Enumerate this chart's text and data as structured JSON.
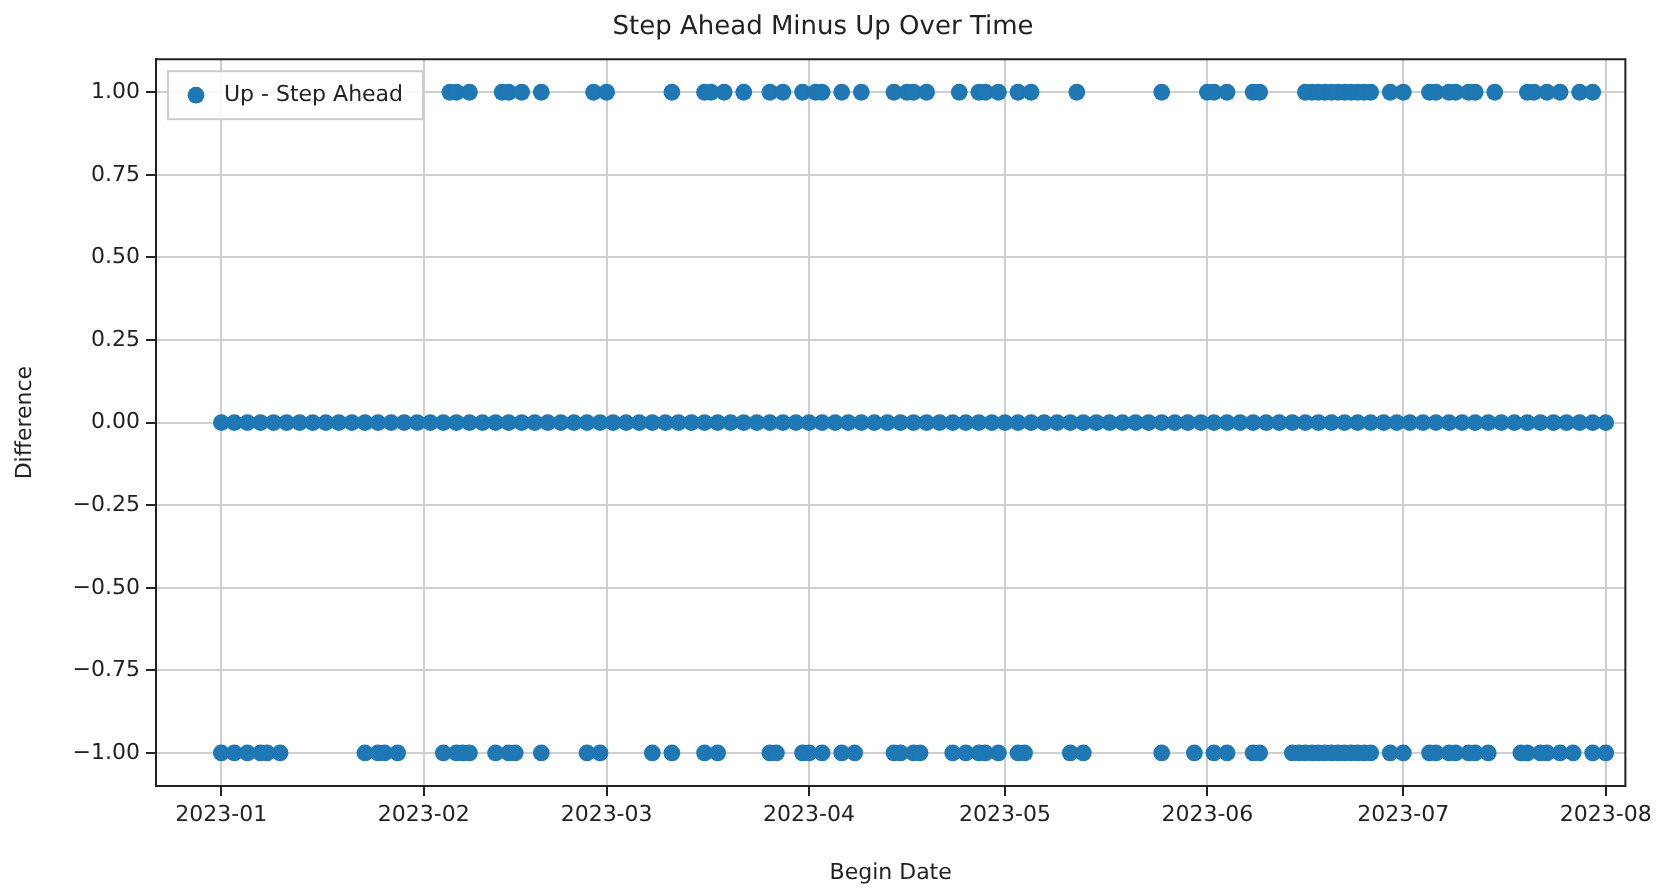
{
  "chart_data": {
    "type": "scatter",
    "title": "Step Ahead Minus Up Over Time",
    "xlabel": "Begin Date",
    "ylabel": "Difference",
    "xlim": [
      "2022-12-22",
      "2023-08-04"
    ],
    "xticks": [
      "2023-01",
      "2023-02",
      "2023-03",
      "2023-04",
      "2023-05",
      "2023-06",
      "2023-07",
      "2023-08"
    ],
    "ylim": [
      -1.1,
      1.1
    ],
    "yticks": [
      {
        "value": -1,
        "label": "−1.00"
      },
      {
        "value": -0.75,
        "label": "−0.75"
      },
      {
        "value": -0.5,
        "label": "−0.50"
      },
      {
        "value": -0.25,
        "label": "−0.25"
      },
      {
        "value": 0,
        "label": "0.00"
      },
      {
        "value": 0.25,
        "label": "0.25"
      },
      {
        "value": 0.5,
        "label": "0.50"
      },
      {
        "value": 0.75,
        "label": "0.75"
      },
      {
        "value": 1,
        "label": "1.00"
      }
    ],
    "grid": true,
    "legend": "top left",
    "marker": "circle",
    "series": [
      {
        "name": "Up - Step Ahead",
        "color": "#1f77b4",
        "x": [
          "2023-01-01",
          "2023-01-03",
          "2023-01-05",
          "2023-01-07",
          "2023-01-09",
          "2023-01-11",
          "2023-01-13",
          "2023-01-15",
          "2023-01-17",
          "2023-01-19",
          "2023-01-21",
          "2023-01-23",
          "2023-01-25",
          "2023-01-27",
          "2023-01-29",
          "2023-01-31",
          "2023-02-02",
          "2023-02-04",
          "2023-02-06",
          "2023-02-08",
          "2023-02-10",
          "2023-02-12",
          "2023-02-14",
          "2023-02-16",
          "2023-02-18",
          "2023-02-20",
          "2023-02-22",
          "2023-02-24",
          "2023-02-26",
          "2023-02-28",
          "2023-03-02",
          "2023-03-04",
          "2023-03-06",
          "2023-03-08",
          "2023-03-10",
          "2023-03-12",
          "2023-03-14",
          "2023-03-16",
          "2023-03-18",
          "2023-03-20",
          "2023-03-22",
          "2023-03-24",
          "2023-03-26",
          "2023-03-28",
          "2023-03-30",
          "2023-04-01",
          "2023-04-03",
          "2023-04-05",
          "2023-04-07",
          "2023-04-09",
          "2023-04-11",
          "2023-04-13",
          "2023-04-15",
          "2023-04-17",
          "2023-04-19",
          "2023-04-21",
          "2023-04-23",
          "2023-04-25",
          "2023-04-27",
          "2023-04-29",
          "2023-05-01",
          "2023-05-03",
          "2023-05-05",
          "2023-05-07",
          "2023-05-09",
          "2023-05-11",
          "2023-05-13",
          "2023-05-15",
          "2023-05-17",
          "2023-05-19",
          "2023-05-21",
          "2023-05-23",
          "2023-05-25",
          "2023-05-27",
          "2023-05-29",
          "2023-05-31",
          "2023-06-02",
          "2023-06-04",
          "2023-06-06",
          "2023-06-08",
          "2023-06-10",
          "2023-06-12",
          "2023-06-14",
          "2023-06-16",
          "2023-06-18",
          "2023-06-20",
          "2023-06-22",
          "2023-06-24",
          "2023-06-26",
          "2023-06-28",
          "2023-06-30",
          "2023-07-02",
          "2023-07-04",
          "2023-07-06",
          "2023-07-08",
          "2023-07-10",
          "2023-07-12",
          "2023-07-14",
          "2023-07-16",
          "2023-07-18",
          "2023-07-20",
          "2023-07-22",
          "2023-07-24",
          "2023-07-26",
          "2023-07-28",
          "2023-07-30",
          "2023-08-01",
          "2023-02-05",
          "2023-02-06",
          "2023-02-08",
          "2023-02-13",
          "2023-02-14",
          "2023-02-16",
          "2023-02-19",
          "2023-02-27",
          "2023-03-01",
          "2023-03-11",
          "2023-03-16",
          "2023-03-17",
          "2023-03-19",
          "2023-03-22",
          "2023-03-26",
          "2023-03-28",
          "2023-03-31",
          "2023-04-02",
          "2023-04-03",
          "2023-04-06",
          "2023-04-09",
          "2023-04-14",
          "2023-04-16",
          "2023-04-17",
          "2023-04-19",
          "2023-04-24",
          "2023-04-27",
          "2023-04-28",
          "2023-04-30",
          "2023-05-03",
          "2023-05-05",
          "2023-05-12",
          "2023-05-25",
          "2023-06-01",
          "2023-06-02",
          "2023-06-04",
          "2023-06-08",
          "2023-06-09",
          "2023-06-16",
          "2023-06-17",
          "2023-06-18",
          "2023-06-19",
          "2023-06-20",
          "2023-06-21",
          "2023-06-22",
          "2023-06-23",
          "2023-06-24",
          "2023-06-25",
          "2023-06-26",
          "2023-06-29",
          "2023-07-01",
          "2023-07-05",
          "2023-07-06",
          "2023-07-08",
          "2023-07-09",
          "2023-07-11",
          "2023-07-12",
          "2023-07-15",
          "2023-07-20",
          "2023-07-21",
          "2023-07-23",
          "2023-07-25",
          "2023-07-28",
          "2023-07-30",
          "2023-01-01",
          "2023-01-03",
          "2023-01-05",
          "2023-01-07",
          "2023-01-08",
          "2023-01-10",
          "2023-01-23",
          "2023-01-25",
          "2023-01-26",
          "2023-01-28",
          "2023-02-04",
          "2023-02-06",
          "2023-02-07",
          "2023-02-08",
          "2023-02-12",
          "2023-02-14",
          "2023-02-15",
          "2023-02-19",
          "2023-02-26",
          "2023-02-28",
          "2023-03-08",
          "2023-03-11",
          "2023-03-16",
          "2023-03-18",
          "2023-03-26",
          "2023-03-27",
          "2023-03-31",
          "2023-04-01",
          "2023-04-03",
          "2023-04-06",
          "2023-04-08",
          "2023-04-14",
          "2023-04-15",
          "2023-04-17",
          "2023-04-18",
          "2023-04-23",
          "2023-04-25",
          "2023-04-27",
          "2023-04-28",
          "2023-04-30",
          "2023-05-03",
          "2023-05-04",
          "2023-05-11",
          "2023-05-13",
          "2023-05-25",
          "2023-05-30",
          "2023-06-02",
          "2023-06-04",
          "2023-06-08",
          "2023-06-09",
          "2023-06-14",
          "2023-06-15",
          "2023-06-16",
          "2023-06-17",
          "2023-06-18",
          "2023-06-19",
          "2023-06-20",
          "2023-06-21",
          "2023-06-22",
          "2023-06-23",
          "2023-06-24",
          "2023-06-25",
          "2023-06-26",
          "2023-06-29",
          "2023-07-01",
          "2023-07-05",
          "2023-07-06",
          "2023-07-08",
          "2023-07-09",
          "2023-07-11",
          "2023-07-12",
          "2023-07-14",
          "2023-07-19",
          "2023-07-20",
          "2023-07-22",
          "2023-07-23",
          "2023-07-25",
          "2023-07-27",
          "2023-07-30",
          "2023-08-01"
        ],
        "values": [
          0,
          0,
          0,
          0,
          0,
          0,
          0,
          0,
          0,
          0,
          0,
          0,
          0,
          0,
          0,
          0,
          0,
          0,
          0,
          0,
          0,
          0,
          0,
          0,
          0,
          0,
          0,
          0,
          0,
          0,
          0,
          0,
          0,
          0,
          0,
          0,
          0,
          0,
          0,
          0,
          0,
          0,
          0,
          0,
          0,
          0,
          0,
          0,
          0,
          0,
          0,
          0,
          0,
          0,
          0,
          0,
          0,
          0,
          0,
          0,
          0,
          0,
          0,
          0,
          0,
          0,
          0,
          0,
          0,
          0,
          0,
          0,
          0,
          0,
          0,
          0,
          0,
          0,
          0,
          0,
          0,
          0,
          0,
          0,
          0,
          0,
          0,
          0,
          0,
          0,
          0,
          0,
          0,
          0,
          0,
          0,
          0,
          0,
          0,
          0,
          0,
          0,
          0,
          0,
          0,
          0,
          0,
          1,
          1,
          1,
          1,
          1,
          1,
          1,
          1,
          1,
          1,
          1,
          1,
          1,
          1,
          1,
          1,
          1,
          1,
          1,
          1,
          1,
          1,
          1,
          1,
          1,
          1,
          1,
          1,
          1,
          1,
          1,
          1,
          1,
          1,
          1,
          1,
          1,
          1,
          1,
          1,
          1,
          1,
          1,
          1,
          1,
          1,
          1,
          1,
          1,
          1,
          1,
          1,
          1,
          1,
          1,
          1,
          1,
          1,
          1,
          1,
          1,
          1,
          1,
          1,
          -1,
          -1,
          -1,
          -1,
          -1,
          -1,
          -1,
          -1,
          -1,
          -1,
          -1,
          -1,
          -1,
          -1,
          -1,
          -1,
          -1,
          -1,
          -1,
          -1,
          -1,
          -1,
          -1,
          -1,
          -1,
          -1,
          -1,
          -1,
          -1,
          -1,
          -1,
          -1,
          -1,
          -1,
          -1,
          -1,
          -1,
          -1,
          -1,
          -1,
          -1,
          -1,
          -1,
          -1,
          -1,
          -1,
          -1,
          -1,
          -1,
          -1,
          -1,
          -1,
          -1,
          -1,
          -1,
          -1,
          -1,
          -1,
          -1,
          -1,
          -1,
          -1,
          -1,
          -1,
          -1,
          -1,
          -1,
          -1,
          -1,
          -1,
          -1,
          -1,
          -1,
          -1,
          -1,
          -1,
          -1,
          -1,
          -1,
          -1
        ]
      }
    ]
  }
}
